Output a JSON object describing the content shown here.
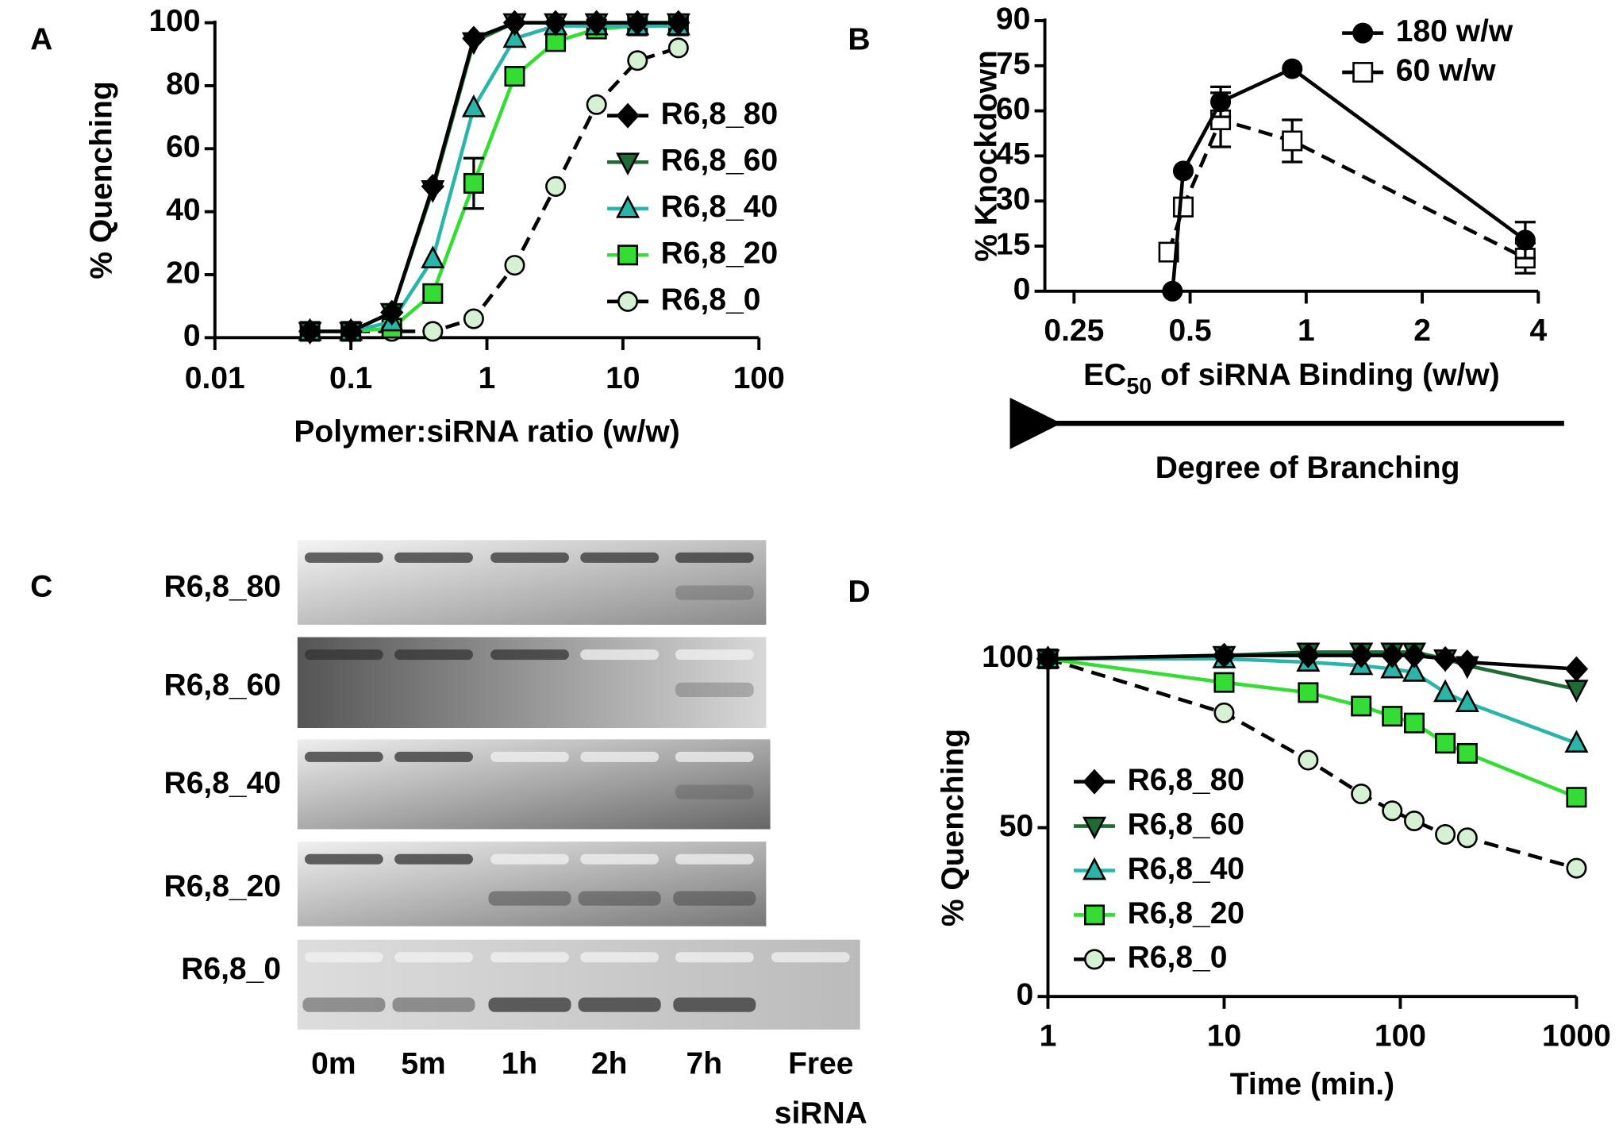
{
  "chart_data": [
    {
      "type": "line",
      "panel": "A",
      "x_label": "Polymer:siRNA ratio (w/w)",
      "y_label": "% Quenching",
      "xscale": "log",
      "xlim": [
        0.01,
        100
      ],
      "xticks": [
        0.01,
        0.1,
        1,
        10,
        100
      ],
      "ylim": [
        0,
        100
      ],
      "yticks": [
        0,
        20,
        40,
        60,
        80,
        100
      ],
      "grid": false,
      "x": [
        0.05,
        0.1,
        0.2,
        0.4,
        0.8,
        1.6,
        3.2,
        6.4,
        12.8,
        25.6
      ],
      "series": [
        {
          "name": "R6,8_80",
          "color": "#000000",
          "line_color": "#000000",
          "marker": "diamond",
          "values": [
            2,
            2,
            8,
            48,
            95,
            100,
            100,
            100,
            100,
            100
          ]
        },
        {
          "name": "R6,8_60",
          "color": "#1f6b35",
          "line_color": "#1f6b35",
          "marker": "tri-down",
          "values": [
            2,
            2,
            8,
            47,
            94,
            100,
            100,
            100,
            100,
            100
          ]
        },
        {
          "name": "R6,8_40",
          "color": "#2bb5a8",
          "line_color": "#2bb5a8",
          "marker": "tri-up",
          "values": [
            2,
            2,
            5,
            25,
            73,
            95,
            99,
            99,
            99,
            99
          ]
        },
        {
          "name": "R6,8_20",
          "color": "#33dd33",
          "line_color": "#33dd33",
          "marker": "square",
          "values": [
            2,
            2,
            3,
            14,
            49,
            83,
            94,
            98,
            99,
            99
          ],
          "errors": [
            0,
            0,
            0,
            0,
            8,
            0,
            0,
            0,
            0,
            0
          ]
        },
        {
          "name": "R6,8_0",
          "color": "#d5f0d2",
          "line_color": "#000000",
          "line_style": "dashed",
          "marker": "circle",
          "values": [
            2,
            2,
            2,
            2,
            6,
            23,
            48,
            74,
            88,
            92
          ]
        }
      ]
    },
    {
      "type": "line",
      "panel": "B",
      "x_label": "EC",
      "x_label_sub": "50",
      "x_label_rest": " of siRNA Binding (w/w)",
      "y_label": "% Knockdown",
      "annotation": "Degree of Branching",
      "xscale": "log",
      "xlim": [
        0.21,
        4
      ],
      "xticks": [
        0.25,
        0.5,
        1,
        2,
        4
      ],
      "ylim": [
        0,
        90
      ],
      "yticks": [
        0,
        15,
        30,
        45,
        60,
        75,
        90
      ],
      "grid": false,
      "series": [
        {
          "name": "180 w/w",
          "color": "#000000",
          "line_color": "#000000",
          "marker": "circle",
          "x": [
            0.45,
            0.48,
            0.6,
            0.92,
            3.7
          ],
          "values": [
            0,
            40,
            63,
            74,
            17
          ],
          "errors": [
            0,
            0,
            5,
            0,
            6
          ]
        },
        {
          "name": "60 w/w",
          "color": "#ffffff",
          "line_color": "#000000",
          "line_style": "dashed",
          "marker": "square",
          "x": [
            0.44,
            0.48,
            0.6,
            0.92,
            3.7
          ],
          "values": [
            13,
            28,
            57,
            50,
            11
          ],
          "errors": [
            0,
            3,
            9,
            7,
            5
          ]
        }
      ]
    },
    {
      "type": "line",
      "panel": "D",
      "x_label": "Time (min.)",
      "y_label": "% Quenching",
      "xscale": "log",
      "xlim": [
        1,
        1000
      ],
      "xticks": [
        1,
        10,
        100,
        1000
      ],
      "ylim": [
        0,
        100
      ],
      "yticks": [
        0,
        50,
        100
      ],
      "grid": false,
      "x": [
        1,
        10,
        30,
        60,
        90,
        120,
        180,
        240,
        1000
      ],
      "series": [
        {
          "name": "R6,8_80",
          "color": "#000000",
          "line_color": "#000000",
          "marker": "diamond",
          "values": [
            100,
            101,
            101,
            101,
            101,
            101,
            100,
            99,
            97
          ]
        },
        {
          "name": "R6,8_60",
          "color": "#1f6b35",
          "line_color": "#1f6b35",
          "marker": "tri-down",
          "values": [
            100,
            101,
            102,
            102,
            102,
            102,
            100,
            98,
            91
          ]
        },
        {
          "name": "R6,8_40",
          "color": "#2bb5a8",
          "line_color": "#2bb5a8",
          "marker": "tri-up",
          "values": [
            100,
            100,
            99,
            98,
            97,
            96,
            90,
            87,
            75
          ]
        },
        {
          "name": "R6,8_20",
          "color": "#33dd33",
          "line_color": "#33dd33",
          "marker": "square",
          "values": [
            100,
            93,
            90,
            86,
            83,
            81,
            75,
            72,
            59
          ]
        },
        {
          "name": "R6,8_0",
          "color": "#d5f0d2",
          "line_color": "#000000",
          "line_style": "dashed",
          "marker": "circle",
          "values": [
            100,
            84,
            70,
            60,
            55,
            52,
            48,
            47,
            38
          ]
        }
      ]
    }
  ],
  "gel": {
    "panel": "C",
    "rows": [
      "R6,8_80",
      "R6,8_60",
      "R6,8_40",
      "R6,8_20",
      "R6,8_0"
    ],
    "lanes": [
      "0m",
      "5m",
      "1h",
      "2h",
      "7h",
      [
        "Free",
        "siRNA"
      ]
    ]
  }
}
